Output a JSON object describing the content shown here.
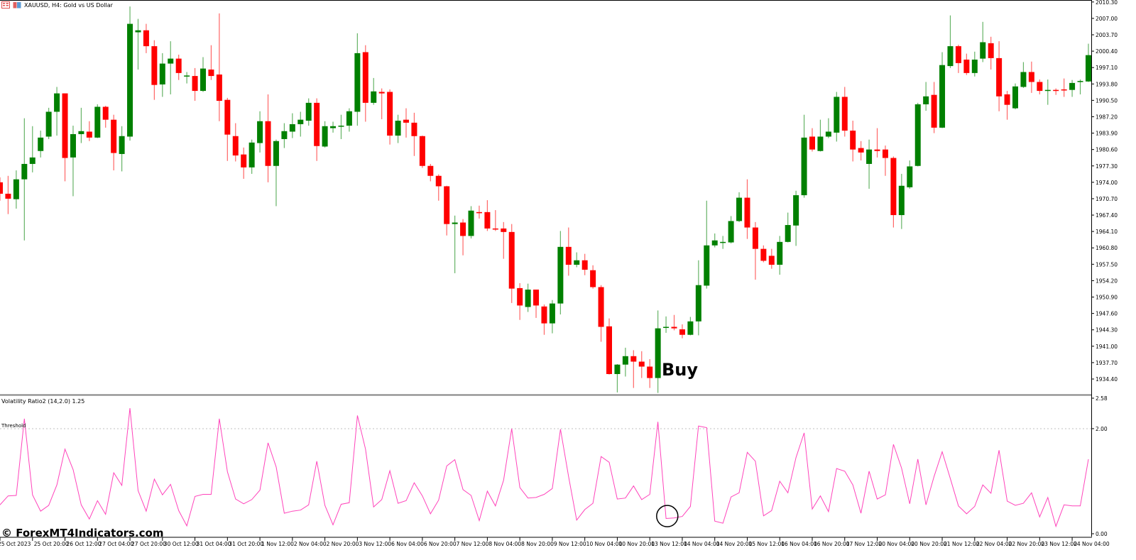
{
  "header": {
    "symbol_title": "XAUUSD, H4:  Gold vs US Dollar",
    "icons": [
      "chart-list-icon",
      "symbol-icon"
    ]
  },
  "indicator": {
    "title": "Volatility Ratio2 (14,2.0) 1.25",
    "threshold_label": "Threshold"
  },
  "annotation": {
    "buy_label": "Buy"
  },
  "watermark": "© ForexMT4Indicators.com",
  "colors": {
    "bull": "#008000",
    "bear": "#ff0000",
    "indicator_line": "#ff44bb",
    "threshold_line": "#c0c0c0"
  },
  "chart_data": [
    {
      "type": "candlestick",
      "title": "XAUUSD, H4:  Gold vs US Dollar",
      "ohlc_format": [
        "open",
        "high",
        "low",
        "close"
      ],
      "ylim": [
        1931.4,
        2010.7
      ],
      "y_ticks": [
        "2010.30",
        "2007.00",
        "2003.70",
        "2000.40",
        "1997.10",
        "1993.80",
        "1990.50",
        "1987.20",
        "1983.90",
        "1980.60",
        "1977.30",
        "1974.00",
        "1970.70",
        "1967.40",
        "1964.10",
        "1960.80",
        "1957.50",
        "1954.20",
        "1950.90",
        "1947.60",
        "1944.30",
        "1941.00",
        "1937.70",
        "1934.40"
      ],
      "x_tick_labels": [
        "25 Oct 2023",
        "25 Oct 20:00",
        "26 Oct 12:00",
        "27 Oct 04:00",
        "27 Oct 20:00",
        "30 Oct 12:00",
        "31 Oct 04:00",
        "31 Oct 20:00",
        "1 Nov 12:00",
        "2 Nov 04:00",
        "2 Nov 20:00",
        "3 Nov 12:00",
        "6 Nov 04:00",
        "6 Nov 20:00",
        "7 Nov 12:00",
        "8 Nov 04:00",
        "8 Nov 20:00",
        "9 Nov 12:00",
        "10 Nov 04:00",
        "10 Nov 20:00",
        "13 Nov 12:00",
        "14 Nov 04:00",
        "14 Nov 20:00",
        "15 Nov 12:00",
        "16 Nov 04:00",
        "16 Nov 20:00",
        "17 Nov 12:00",
        "20 Nov 04:00",
        "20 Nov 20:00",
        "21 Nov 12:00",
        "22 Nov 04:00",
        "22 Nov 20:00",
        "23 Nov 12:00",
        "24 Nov 04:00"
      ],
      "x_tick_every_bars": 4,
      "grid": false,
      "buy_signal_bar": 81,
      "candles": [
        [
          1974.0,
          1975.0,
          1970.3,
          1971.7
        ],
        [
          1971.7,
          1975.3,
          1967.6,
          1970.7
        ],
        [
          1970.6,
          1976.4,
          1968.7,
          1974.6
        ],
        [
          1974.6,
          1986.9,
          1962.3,
          1977.7
        ],
        [
          1977.7,
          1985.3,
          1976.0,
          1979.0
        ],
        [
          1980.3,
          1984.4,
          1979.0,
          1983.0
        ],
        [
          1983.2,
          1989.0,
          1982.7,
          1988.2
        ],
        [
          1988.2,
          1993.2,
          1983.4,
          1991.9
        ],
        [
          1991.9,
          1991.9,
          1974.2,
          1978.9
        ],
        [
          1979.0,
          1985.4,
          1971.2,
          1983.7
        ],
        [
          1983.7,
          1989.0,
          1981.9,
          1984.3
        ],
        [
          1984.2,
          1986.3,
          1982.3,
          1983.0
        ],
        [
          1983.0,
          1989.7,
          1982.9,
          1989.2
        ],
        [
          1989.2,
          1989.4,
          1985.0,
          1986.6
        ],
        [
          1986.6,
          1987.6,
          1976.4,
          1979.9
        ],
        [
          1979.7,
          1985.3,
          1976.2,
          1983.3
        ],
        [
          1983.2,
          2009.4,
          1982.4,
          2005.9
        ],
        [
          2004.2,
          2006.9,
          1996.7,
          2004.6
        ],
        [
          2004.6,
          2005.9,
          2000.0,
          2001.4
        ],
        [
          2001.4,
          2002.6,
          1990.6,
          1993.6
        ],
        [
          1993.7,
          2000.0,
          1991.2,
          1997.9
        ],
        [
          1997.9,
          2002.4,
          1991.7,
          1998.9
        ],
        [
          1998.9,
          1999.7,
          1994.6,
          1996.0
        ],
        [
          1995.4,
          1996.2,
          1993.9,
          1995.5
        ],
        [
          1995.4,
          1997.0,
          1990.4,
          1992.4
        ],
        [
          1992.4,
          1999.2,
          1992.2,
          1996.9
        ],
        [
          1996.7,
          2001.6,
          1994.6,
          1995.4
        ],
        [
          1995.7,
          2008.0,
          1986.3,
          1990.4
        ],
        [
          1990.6,
          1991.0,
          1978.3,
          1983.6
        ],
        [
          1983.3,
          1985.9,
          1978.2,
          1979.4
        ],
        [
          1979.6,
          1981.0,
          1974.7,
          1977.0
        ],
        [
          1977.0,
          1982.6,
          1975.7,
          1982.0
        ],
        [
          1981.9,
          1988.3,
          1980.0,
          1986.3
        ],
        [
          1986.3,
          1991.7,
          1974.0,
          1977.3
        ],
        [
          1977.3,
          1982.6,
          1969.2,
          1982.3
        ],
        [
          1982.7,
          1985.9,
          1980.9,
          1984.3
        ],
        [
          1984.2,
          1987.9,
          1982.9,
          1985.7
        ],
        [
          1985.7,
          1988.2,
          1983.2,
          1986.6
        ],
        [
          1986.4,
          1990.9,
          1985.4,
          1990.0
        ],
        [
          1990.0,
          1990.9,
          1978.3,
          1981.3
        ],
        [
          1981.2,
          1986.3,
          1981.0,
          1985.3
        ],
        [
          1984.9,
          1986.2,
          1984.0,
          1985.3
        ],
        [
          1985.3,
          1987.6,
          1982.7,
          1985.4
        ],
        [
          1985.4,
          1988.9,
          1984.2,
          1988.3
        ],
        [
          1988.2,
          2004.0,
          1985.4,
          2000.0
        ],
        [
          2000.2,
          2001.6,
          1986.2,
          1990.0
        ],
        [
          1990.0,
          1995.0,
          1989.6,
          1992.3
        ],
        [
          1992.2,
          1992.9,
          1986.7,
          1991.9
        ],
        [
          1992.2,
          1992.7,
          1981.6,
          1983.4
        ],
        [
          1983.4,
          1987.6,
          1981.9,
          1986.4
        ],
        [
          1986.6,
          1988.9,
          1983.0,
          1986.0
        ],
        [
          1986.0,
          1988.0,
          1979.3,
          1983.3
        ],
        [
          1983.3,
          1983.4,
          1976.9,
          1977.3
        ],
        [
          1977.3,
          1977.7,
          1974.2,
          1975.3
        ],
        [
          1975.3,
          1975.6,
          1970.3,
          1973.2
        ],
        [
          1973.2,
          1973.3,
          1963.3,
          1965.6
        ],
        [
          1965.6,
          1967.3,
          1955.7,
          1965.9
        ],
        [
          1965.9,
          1966.6,
          1959.3,
          1963.2
        ],
        [
          1963.2,
          1969.2,
          1962.7,
          1968.3
        ],
        [
          1968.0,
          1969.3,
          1966.7,
          1967.9
        ],
        [
          1968.0,
          1970.4,
          1964.2,
          1964.7
        ],
        [
          1964.7,
          1968.4,
          1964.2,
          1964.6
        ],
        [
          1964.7,
          1966.0,
          1958.6,
          1964.0
        ],
        [
          1964.0,
          1965.6,
          1949.7,
          1952.6
        ],
        [
          1952.7,
          1953.7,
          1946.3,
          1949.2
        ],
        [
          1948.9,
          1953.6,
          1947.9,
          1952.4
        ],
        [
          1952.4,
          1952.4,
          1946.7,
          1949.2
        ],
        [
          1949.0,
          1949.4,
          1943.3,
          1945.6
        ],
        [
          1945.6,
          1950.3,
          1943.6,
          1949.6
        ],
        [
          1949.6,
          1964.2,
          1947.4,
          1961.0
        ],
        [
          1961.0,
          1964.9,
          1955.2,
          1957.4
        ],
        [
          1957.4,
          1959.9,
          1956.9,
          1958.3
        ],
        [
          1958.3,
          1959.6,
          1955.3,
          1956.4
        ],
        [
          1956.3,
          1957.3,
          1952.6,
          1952.9
        ],
        [
          1952.9,
          1953.3,
          1941.9,
          1944.9
        ],
        [
          1945.0,
          1946.6,
          1935.3,
          1935.4
        ],
        [
          1935.4,
          1937.4,
          1931.7,
          1937.3
        ],
        [
          1937.3,
          1940.7,
          1934.9,
          1939.0
        ],
        [
          1939.0,
          1940.2,
          1932.6,
          1937.9
        ],
        [
          1937.9,
          1940.0,
          1934.6,
          1936.9
        ],
        [
          1936.9,
          1938.4,
          1932.6,
          1934.6
        ],
        [
          1934.6,
          1948.2,
          1931.6,
          1944.6
        ],
        [
          1944.7,
          1947.0,
          1943.7,
          1944.9
        ],
        [
          1944.9,
          1947.3,
          1944.2,
          1944.6
        ],
        [
          1944.4,
          1945.4,
          1942.6,
          1943.3
        ],
        [
          1943.3,
          1946.9,
          1943.2,
          1946.0
        ],
        [
          1946.0,
          1958.3,
          1943.2,
          1953.3
        ],
        [
          1953.2,
          1970.3,
          1952.6,
          1961.3
        ],
        [
          1961.3,
          1963.7,
          1960.9,
          1962.3
        ],
        [
          1961.9,
          1963.2,
          1960.6,
          1962.0
        ],
        [
          1961.9,
          1967.2,
          1961.7,
          1966.2
        ],
        [
          1966.2,
          1972.0,
          1966.0,
          1970.9
        ],
        [
          1970.9,
          1974.6,
          1962.6,
          1964.9
        ],
        [
          1964.9,
          1966.0,
          1954.4,
          1960.6
        ],
        [
          1960.6,
          1961.3,
          1957.9,
          1958.2
        ],
        [
          1959.2,
          1960.6,
          1956.6,
          1957.4
        ],
        [
          1957.4,
          1963.2,
          1955.4,
          1962.0
        ],
        [
          1962.0,
          1967.9,
          1961.9,
          1965.4
        ],
        [
          1965.3,
          1972.3,
          1961.2,
          1971.4
        ],
        [
          1971.4,
          1987.6,
          1970.9,
          1983.0
        ],
        [
          1983.2,
          1984.9,
          1980.2,
          1980.6
        ],
        [
          1980.3,
          1986.6,
          1980.2,
          1983.2
        ],
        [
          1983.2,
          1986.9,
          1982.9,
          1984.2
        ],
        [
          1984.0,
          1992.2,
          1982.2,
          1991.2
        ],
        [
          1991.2,
          1993.2,
          1983.2,
          1984.4
        ],
        [
          1984.4,
          1986.4,
          1978.2,
          1980.6
        ],
        [
          1980.9,
          1982.3,
          1978.4,
          1980.0
        ],
        [
          1977.7,
          1982.6,
          1972.7,
          1980.6
        ],
        [
          1980.6,
          1984.9,
          1979.0,
          1980.3
        ],
        [
          1980.6,
          1981.4,
          1975.3,
          1978.9
        ],
        [
          1978.9,
          1979.2,
          1964.9,
          1967.4
        ],
        [
          1967.4,
          1975.7,
          1964.6,
          1973.3
        ],
        [
          1973.0,
          1978.4,
          1972.7,
          1977.2
        ],
        [
          1977.3,
          1990.0,
          1977.2,
          1989.7
        ],
        [
          1989.7,
          1994.2,
          1988.4,
          1991.3
        ],
        [
          1991.6,
          1994.2,
          1983.9,
          1985.0
        ],
        [
          1985.0,
          2000.2,
          1984.9,
          1997.6
        ],
        [
          1997.4,
          2007.6,
          1997.0,
          2001.4
        ],
        [
          2001.4,
          2001.7,
          1996.0,
          1998.0
        ],
        [
          1998.7,
          1999.9,
          1995.6,
          1996.0
        ],
        [
          1996.0,
          2000.3,
          1995.3,
          1998.7
        ],
        [
          1998.9,
          2006.3,
          1998.2,
          2002.2
        ],
        [
          2002.0,
          2003.3,
          1996.7,
          1999.0
        ],
        [
          1999.0,
          2002.4,
          1988.3,
          1991.3
        ],
        [
          1991.7,
          1992.4,
          1986.6,
          1989.6
        ],
        [
          1988.9,
          1993.9,
          1988.7,
          1993.3
        ],
        [
          1993.2,
          1998.2,
          1993.0,
          1996.2
        ],
        [
          1996.2,
          1998.3,
          1992.0,
          1994.2
        ],
        [
          1994.2,
          1994.7,
          1991.7,
          1992.4
        ],
        [
          1992.6,
          1994.7,
          1989.6,
          1992.6
        ],
        [
          1992.6,
          1992.9,
          1991.6,
          1992.4
        ],
        [
          1992.7,
          1994.9,
          1991.2,
          1992.6
        ],
        [
          1992.6,
          1994.6,
          1991.2,
          1994.0
        ],
        [
          1994.3,
          1994.7,
          1991.7,
          1994.4
        ],
        [
          1994.3,
          2001.9,
          1994.2,
          1999.6
        ]
      ]
    },
    {
      "type": "line",
      "title": "Volatility Ratio2 (14,2.0) 1.25",
      "ylim": [
        0.0,
        2.58
      ],
      "y_ticks": [
        "2.58",
        "2.00",
        "0.00"
      ],
      "threshold": 2.0,
      "threshold_label": "Threshold",
      "values": [
        0.55,
        0.72,
        0.73,
        2.19,
        0.74,
        0.43,
        0.54,
        0.93,
        1.61,
        1.22,
        0.55,
        0.28,
        0.63,
        0.37,
        1.16,
        0.92,
        2.39,
        0.82,
        0.43,
        1.04,
        0.74,
        0.94,
        0.44,
        0.15,
        0.71,
        0.75,
        0.75,
        2.19,
        1.18,
        0.66,
        0.57,
        0.65,
        0.83,
        1.73,
        1.27,
        0.39,
        0.43,
        0.45,
        0.55,
        1.38,
        0.54,
        0.17,
        0.56,
        0.59,
        2.25,
        1.61,
        0.51,
        0.65,
        1.2,
        0.58,
        0.63,
        0.97,
        0.72,
        0.38,
        0.64,
        1.29,
        1.41,
        0.84,
        0.73,
        0.25,
        0.81,
        0.53,
        1.02,
        2.0,
        0.88,
        0.68,
        0.69,
        0.75,
        0.86,
        1.99,
        1.09,
        0.26,
        0.46,
        0.58,
        1.47,
        1.36,
        0.66,
        0.68,
        0.91,
        0.65,
        0.75,
        2.13,
        0.29,
        0.3,
        0.33,
        0.52,
        2.05,
        2.02,
        0.24,
        0.2,
        0.7,
        0.78,
        1.55,
        1.38,
        0.34,
        0.44,
        1.0,
        0.78,
        1.45,
        1.92,
        0.47,
        0.72,
        0.42,
        1.24,
        1.19,
        0.93,
        0.39,
        1.19,
        0.66,
        0.74,
        1.7,
        1.25,
        0.57,
        1.42,
        0.55,
        1.09,
        1.56,
        1.05,
        0.53,
        0.38,
        0.52,
        0.93,
        0.77,
        1.59,
        0.62,
        0.54,
        0.58,
        0.78,
        0.32,
        0.69,
        0.14,
        0.55,
        0.53,
        0.53,
        1.42
      ],
      "highlighted_bars": [
        82,
        83
      ]
    }
  ]
}
